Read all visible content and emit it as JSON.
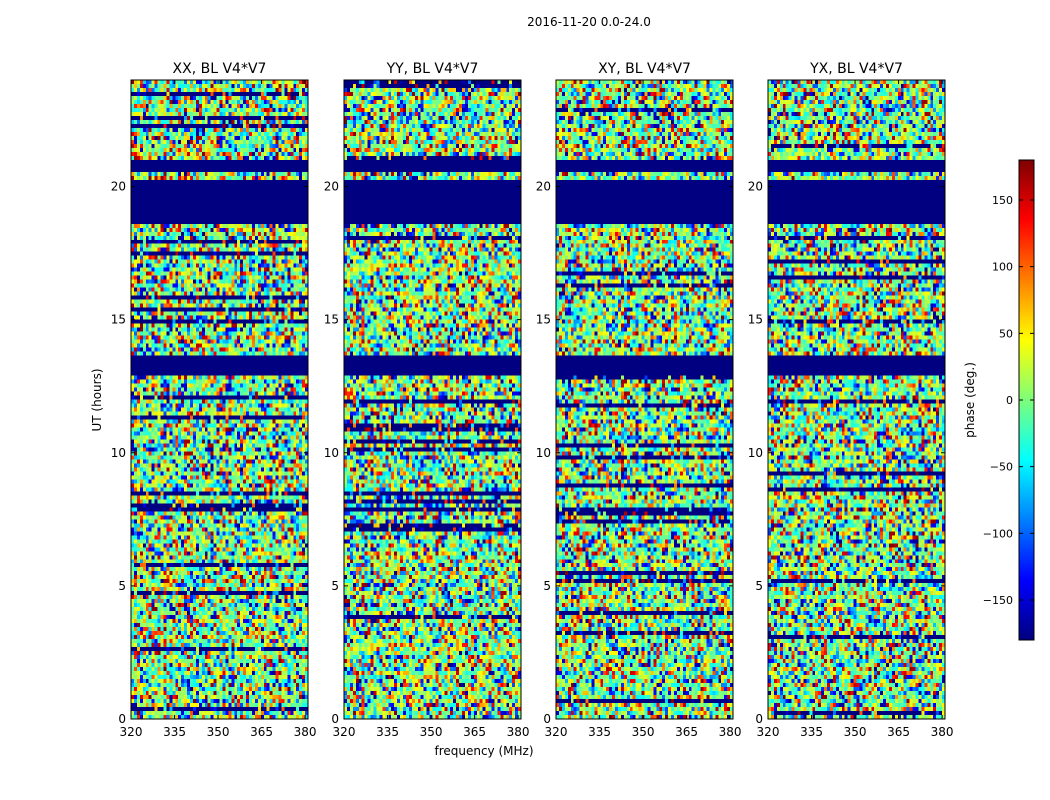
{
  "figure": {
    "suptitle": "2016-11-20 0.0-24.0"
  },
  "chart_data": {
    "type": "heatmap",
    "x_label": "frequency (MHz)",
    "y_label": "UT (hours)",
    "xlim": [
      320,
      381
    ],
    "ylim": [
      0,
      24
    ],
    "x_ticks": [
      320,
      335,
      350,
      365,
      380
    ],
    "y_ticks": [
      0,
      5,
      10,
      15,
      20
    ],
    "panels": [
      {
        "title": "XX, BL V4*V7"
      },
      {
        "title": "YY, BL V4*V7"
      },
      {
        "title": "XY, BL V4*V7"
      },
      {
        "title": "YX, BL V4*V7"
      }
    ],
    "flagged_bands_hours": [
      [
        18.6,
        20.2
      ],
      [
        12.9,
        13.6
      ],
      [
        20.5,
        21.0
      ]
    ],
    "colorbar": {
      "label": "phase (deg.)",
      "range": [
        -180,
        180
      ],
      "ticks": [
        150,
        100,
        50,
        0,
        -50,
        -100,
        -150
      ],
      "colormap": "jet"
    }
  }
}
